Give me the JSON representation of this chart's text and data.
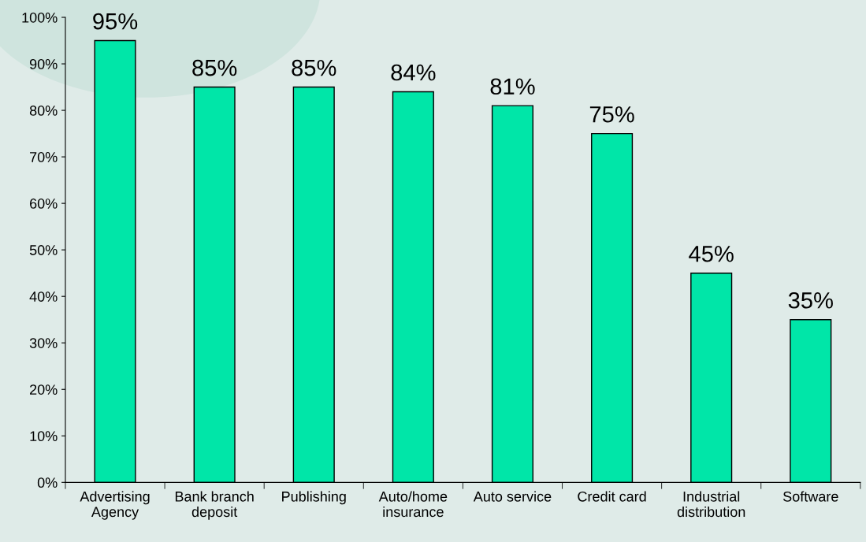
{
  "chart_data": {
    "type": "bar",
    "categories": [
      "Advertising\nAgency",
      "Bank branch\ndeposit",
      "Publishing",
      "Auto/home\ninsurance",
      "Auto service",
      "Credit card",
      "Industrial\ndistribution",
      "Software"
    ],
    "values": [
      95,
      85,
      85,
      84,
      81,
      75,
      45,
      35
    ],
    "color": "#00e6a8",
    "ylim": [
      0,
      100
    ],
    "yticks": [
      {
        "value": 0,
        "label": "0%"
      },
      {
        "value": 10,
        "label": "10%"
      },
      {
        "value": 20,
        "label": "20%"
      },
      {
        "value": 30,
        "label": "30%"
      },
      {
        "value": 40,
        "label": "40%"
      },
      {
        "value": 50,
        "label": "50%"
      },
      {
        "value": 60,
        "label": "60%"
      },
      {
        "value": 70,
        "label": "70%"
      },
      {
        "value": 80,
        "label": "80%"
      },
      {
        "value": 90,
        "label": "90%"
      },
      {
        "value": 100,
        "label": "100%"
      }
    ],
    "value_labels": [
      "95%",
      "85%",
      "85%",
      "84%",
      "81%",
      "75%",
      "45%",
      "35%"
    ],
    "grid": false,
    "legend": false
  }
}
